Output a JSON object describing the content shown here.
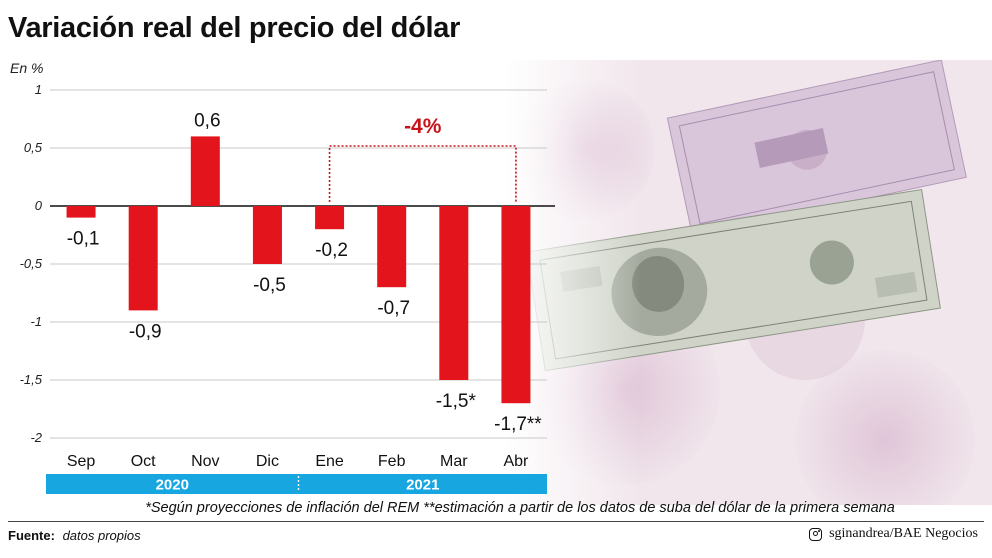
{
  "title": "Variación real del precio del dólar",
  "unit_label": "En %",
  "footnote": "*Según proyecciones de inflación del REM **estimación a partir de los datos de suba del dólar de la primera semana",
  "source": {
    "label": "Fuente:",
    "value": "datos propios"
  },
  "credit": {
    "icon": "instagram-icon",
    "text": "sginandrea/BAE Negocios"
  },
  "colors": {
    "bar": "#e3141b",
    "year_band": "#17a6e0",
    "bracket": "#c8131b",
    "grid": "#c8c8c8"
  },
  "chart_data": {
    "type": "bar",
    "categories": [
      "Sep",
      "Oct",
      "Nov",
      "Dic",
      "Ene",
      "Feb",
      "Mar",
      "Abr"
    ],
    "values": [
      -0.1,
      -0.9,
      0.6,
      -0.5,
      -0.2,
      -0.7,
      -1.5,
      -1.7
    ],
    "data_labels": [
      "-0,1",
      "-0,9",
      "0,6",
      "-0,5",
      "-0,2",
      "-0,7",
      "-1,5*",
      "-1,7**"
    ],
    "ylim": [
      -2,
      1
    ],
    "yticks": [
      1,
      0.5,
      0,
      -0.5,
      -1,
      -1.5,
      -2
    ],
    "ytick_labels": [
      "1",
      "0,5",
      "0",
      "-0,5",
      "-1",
      "-1,5",
      "-2"
    ],
    "grid": true,
    "year_groups": [
      {
        "label": "2020",
        "categories": [
          "Sep",
          "Oct",
          "Nov",
          "Dic"
        ]
      },
      {
        "label": "2021",
        "categories": [
          "Ene",
          "Feb",
          "Mar",
          "Abr"
        ]
      }
    ],
    "annotation": {
      "text": "-4%",
      "from": "Ene",
      "to": "Abr"
    }
  }
}
